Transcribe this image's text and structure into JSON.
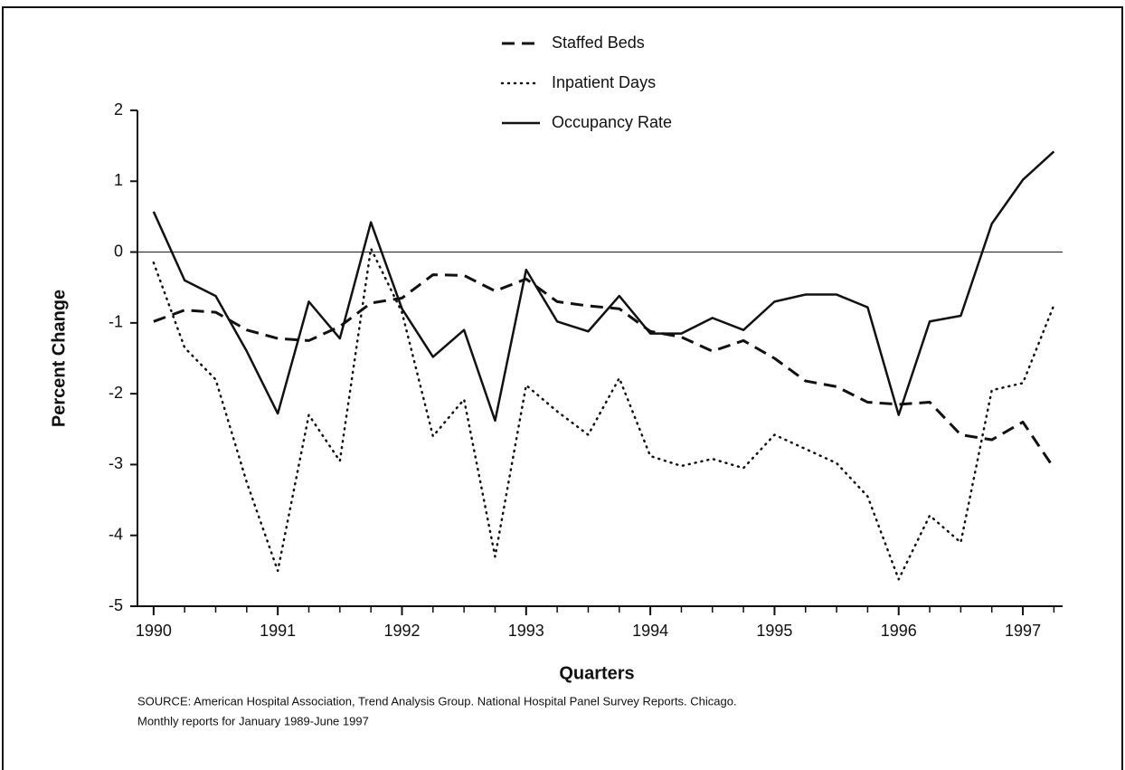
{
  "chart_data": {
    "type": "line",
    "x_label": "Quarters",
    "y_label": "Percent Change",
    "x": [
      1990,
      1990.25,
      1990.5,
      1990.75,
      1991,
      1991.25,
      1991.5,
      1991.75,
      1992,
      1992.25,
      1992.5,
      1992.75,
      1993,
      1993.25,
      1993.5,
      1993.75,
      1994,
      1994.25,
      1994.5,
      1994.75,
      1995,
      1995.25,
      1995.5,
      1995.75,
      1996,
      1996.25,
      1996.5,
      1996.75,
      1997,
      1997.25
    ],
    "series": [
      {
        "name": "Staffed Beds",
        "color": "#111111",
        "style": "dashed",
        "values": [
          -0.98,
          -0.82,
          -0.85,
          -1.1,
          -1.22,
          -1.25,
          -1.05,
          -0.72,
          -0.65,
          -0.32,
          -0.33,
          -0.55,
          -0.38,
          -0.7,
          -0.76,
          -0.8,
          -1.12,
          -1.2,
          -1.4,
          -1.25,
          -1.5,
          -1.82,
          -1.9,
          -2.12,
          -2.15,
          -2.12,
          -2.58,
          -2.65,
          -2.4,
          -3.05
        ]
      },
      {
        "name": "Inpatient Days",
        "color": "#111111",
        "style": "dotted",
        "values": [
          -0.15,
          -1.35,
          -1.8,
          -3.25,
          -4.5,
          -2.3,
          -2.95,
          0.05,
          -0.85,
          -2.6,
          -2.08,
          -4.3,
          -1.88,
          -2.25,
          -2.58,
          -1.78,
          -2.88,
          -3.02,
          -2.92,
          -3.05,
          -2.58,
          -2.78,
          -2.98,
          -3.45,
          -4.62,
          -3.72,
          -4.1,
          -1.95,
          -1.85,
          -0.75
        ]
      },
      {
        "name": "Occupancy Rate",
        "color": "#111111",
        "style": "solid",
        "values": [
          0.57,
          -0.4,
          -0.62,
          -1.4,
          -2.28,
          -0.7,
          -1.22,
          0.42,
          -0.8,
          -1.48,
          -1.1,
          -2.38,
          -0.25,
          -0.98,
          -1.12,
          -0.62,
          -1.15,
          -1.15,
          -0.93,
          -1.1,
          -0.7,
          -0.6,
          -0.6,
          -0.78,
          -2.3,
          -0.98,
          -0.9,
          0.4,
          1.02,
          1.42
        ]
      }
    ],
    "xlim": [
      1989.87,
      1997.32
    ],
    "xticks": [
      1990,
      1991,
      1992,
      1993,
      1994,
      1995,
      1996,
      1997
    ],
    "ylim": [
      -5,
      2
    ],
    "yticks": [
      -5,
      -4,
      -3,
      -2,
      -1,
      0,
      1,
      2
    ],
    "zero_line": true,
    "legend": "top",
    "source": [
      "SOURCE: American Hospital Association, Trend Analysis Group. National Hospital Panel Survey Reports. Chicago.",
      "Monthly reports for January 1989-June 1997"
    ]
  }
}
